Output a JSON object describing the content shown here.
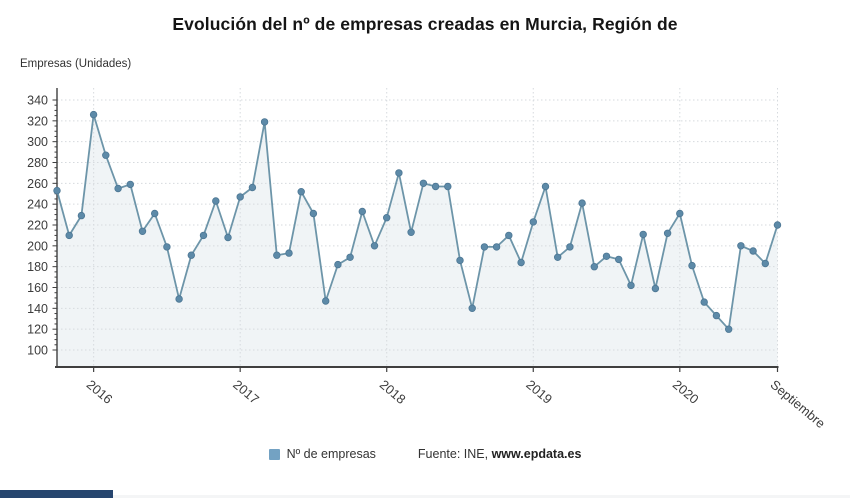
{
  "title": "Evolución del nº de empresas creadas en Murcia, Región de",
  "y_axis_title": "Empresas (Unidades)",
  "legend": {
    "series_label": "Nº de empresas",
    "source_prefix": "Fuente: INE, ",
    "source_link": "www.epdata.es"
  },
  "colors": {
    "line": "#6d95a9",
    "marker": "#5d8aa8",
    "marker_stroke": "#4d7794",
    "legend_swatch": "#73a2c3",
    "area_fill": "rgba(109,149,169,0.10)",
    "grid": "#d6dade",
    "axis": "#3f3f3f",
    "tick_label": "#3c3c3c",
    "progress_bar": "#26456e"
  },
  "chart_data": {
    "type": "line",
    "title": "Evolución del nº de empresas creadas en Murcia, Región de",
    "xlabel": "",
    "ylabel": "Empresas (Unidades)",
    "series_name": "Nº de empresas",
    "source": "Fuente: INE, www.epdata.es",
    "grid": true,
    "legend_position": "bottom",
    "ylim": [
      84,
      352
    ],
    "yticks": [
      100,
      120,
      140,
      160,
      180,
      200,
      220,
      240,
      260,
      280,
      300,
      320,
      340
    ],
    "xticks": [
      {
        "label": "2016",
        "index": 3
      },
      {
        "label": "2017",
        "index": 15
      },
      {
        "label": "2018",
        "index": 27
      },
      {
        "label": "2019",
        "index": 39
      },
      {
        "label": "2020",
        "index": 51
      },
      {
        "label": "Septiembre",
        "index": 59
      }
    ],
    "x": [
      "Oct 2015",
      "Nov 2015",
      "Dic 2015",
      "Ene 2016",
      "Feb 2016",
      "Mar 2016",
      "Abr 2016",
      "May 2016",
      "Jun 2016",
      "Jul 2016",
      "Ago 2016",
      "Sep 2016",
      "Oct 2016",
      "Nov 2016",
      "Dic 2016",
      "Ene 2017",
      "Feb 2017",
      "Mar 2017",
      "Abr 2017",
      "May 2017",
      "Jun 2017",
      "Jul 2017",
      "Ago 2017",
      "Sep 2017",
      "Oct 2017",
      "Nov 2017",
      "Dic 2017",
      "Ene 2018",
      "Feb 2018",
      "Mar 2018",
      "Abr 2018",
      "May 2018",
      "Jun 2018",
      "Jul 2018",
      "Ago 2018",
      "Sep 2018",
      "Oct 2018",
      "Nov 2018",
      "Dic 2018",
      "Ene 2019",
      "Feb 2019",
      "Mar 2019",
      "Abr 2019",
      "May 2019",
      "Jun 2019",
      "Jul 2019",
      "Ago 2019",
      "Sep 2019",
      "Oct 2019",
      "Nov 2019",
      "Dic 2019",
      "Ene 2020",
      "Feb 2020",
      "Mar 2020",
      "Abr 2020",
      "May 2020",
      "Jun 2020",
      "Jul 2020",
      "Ago 2020",
      "Sep 2020"
    ],
    "values": [
      253,
      210,
      229,
      326,
      287,
      255,
      259,
      214,
      231,
      199,
      149,
      191,
      210,
      243,
      208,
      247,
      256,
      319,
      191,
      193,
      252,
      231,
      147,
      182,
      189,
      233,
      200,
      227,
      270,
      213,
      260,
      257,
      257,
      186,
      140,
      199,
      199,
      210,
      184,
      223,
      257,
      189,
      199,
      241,
      180,
      190,
      187,
      162,
      211,
      159,
      212,
      231,
      181,
      146,
      133,
      120,
      200,
      195,
      183,
      220
    ]
  }
}
